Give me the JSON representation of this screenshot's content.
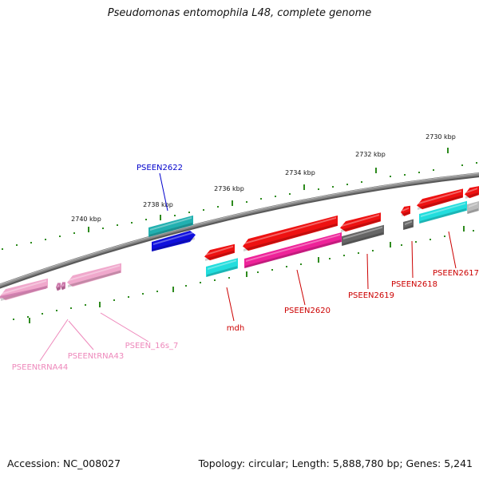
{
  "title": "Pseudomonas entomophila L48, complete genome",
  "footer": {
    "accession": "Accession: NC_008027",
    "summary": "Topology: circular; Length: 5,888,780 bp; Genes: 5,241"
  },
  "scale_labels": [
    "2730 kbp",
    "2732 kbp",
    "2734 kbp",
    "2736 kbp",
    "2738 kbp",
    "2740 kbp"
  ],
  "gene_labels": [
    {
      "text": "PSEEN2622",
      "color": "#0000cc"
    },
    {
      "text": "mdh",
      "color": "#cc0000"
    },
    {
      "text": "PSEEN2620",
      "color": "#cc0000"
    },
    {
      "text": "PSEEN2619",
      "color": "#cc0000"
    },
    {
      "text": "PSEEN2618",
      "color": "#cc0000"
    },
    {
      "text": "PSEEN2617",
      "color": "#cc0000"
    },
    {
      "text": "PSEENtRNA44",
      "color": "#ee88bb"
    },
    {
      "text": "PSEENtRNA43",
      "color": "#ee88bb"
    },
    {
      "text": "PSEEN_16s_7",
      "color": "#ee88bb"
    }
  ],
  "colors": {
    "backbone": "#8a8a8a",
    "tick": "#2e8b1e",
    "cds_red": "#ee1111",
    "cds_cyan": "#22dddd",
    "cds_teal": "#22b0b0",
    "cds_blue": "#1010dd",
    "cds_gray": "#666666",
    "cds_magenta": "#ee2299",
    "rna_pink": "#f0a8cc",
    "rna_mauve": "#cc77aa"
  }
}
